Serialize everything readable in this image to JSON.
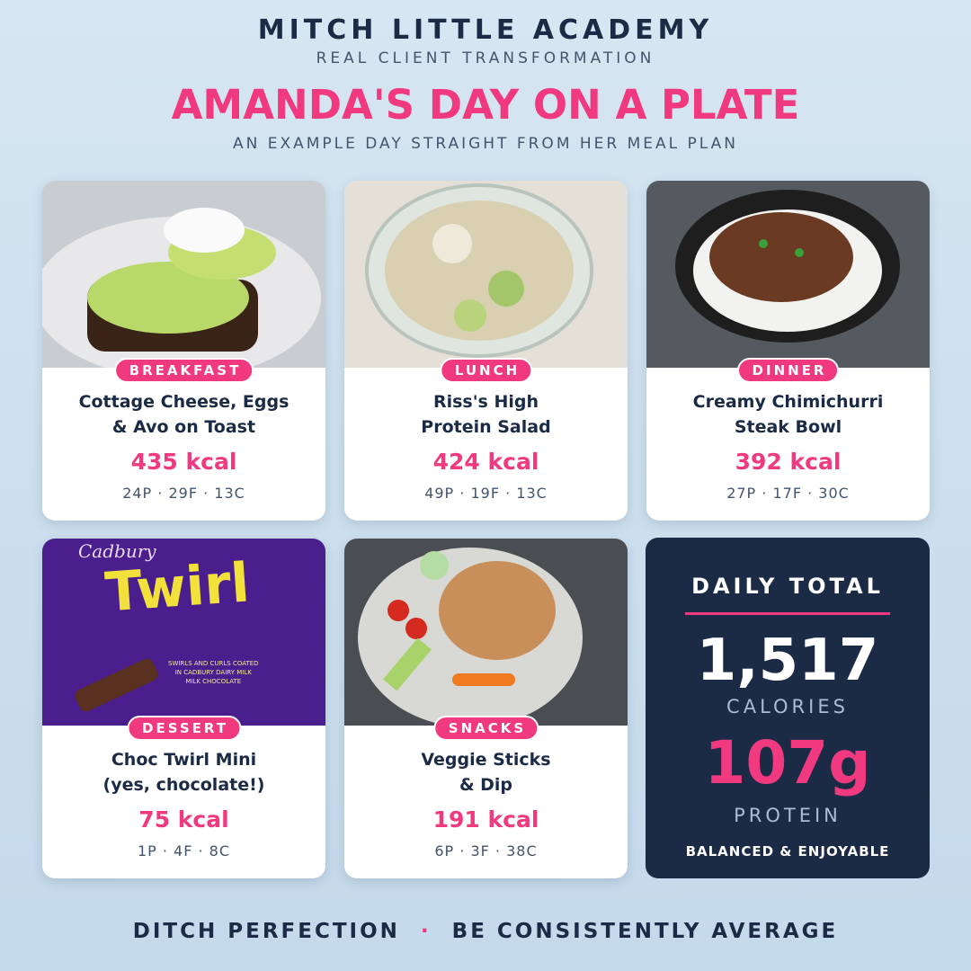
{
  "header": {
    "brand": "MITCH LITTLE ACADEMY",
    "tagline": "REAL CLIENT TRANSFORMATION",
    "title": "AMANDA'S DAY ON A PLATE",
    "subtitle": "AN EXAMPLE DAY STRAIGHT FROM HER MEAL PLAN"
  },
  "meals": [
    {
      "label": "BREAKFAST",
      "name": [
        "Cottage Cheese, Eggs",
        "& Avo on Toast"
      ],
      "kcal": "435 kcal",
      "macros": "24P · 29F · 13C"
    },
    {
      "label": "LUNCH",
      "name": [
        "Riss's High",
        "Protein Salad"
      ],
      "kcal": "424 kcal",
      "macros": "49P · 19F · 13C"
    },
    {
      "label": "DINNER",
      "name": [
        "Creamy Chimichurri",
        "Steak Bowl"
      ],
      "kcal": "392 kcal",
      "macros": "27P · 17F · 30C"
    },
    {
      "label": "DESSERT",
      "name": [
        "Choc Twirl Mini",
        "(yes, chocolate!)"
      ],
      "kcal": "75 kcal",
      "macros": "1P · 4F · 8C",
      "packaging": {
        "brand": "Cadbury",
        "product": "Twirl",
        "blurb": [
          "SWIRLS AND CURLS COATED",
          "IN CADBURY DAIRY MILK",
          "MILK CHOCOLATE"
        ]
      }
    },
    {
      "label": "SNACKS",
      "name": [
        "Veggie Sticks",
        "& Dip"
      ],
      "kcal": "191 kcal",
      "macros": "6P · 3F · 38C"
    }
  ],
  "total": {
    "heading": "DAILY TOTAL",
    "calories": "1,517",
    "calories_label": "CALORIES",
    "protein": "107g",
    "protein_label": "PROTEIN",
    "note": "BALANCED & ENJOYABLE"
  },
  "footer": {
    "left": "DITCH PERFECTION",
    "separator": "·",
    "right": "BE CONSISTENTLY AVERAGE"
  }
}
